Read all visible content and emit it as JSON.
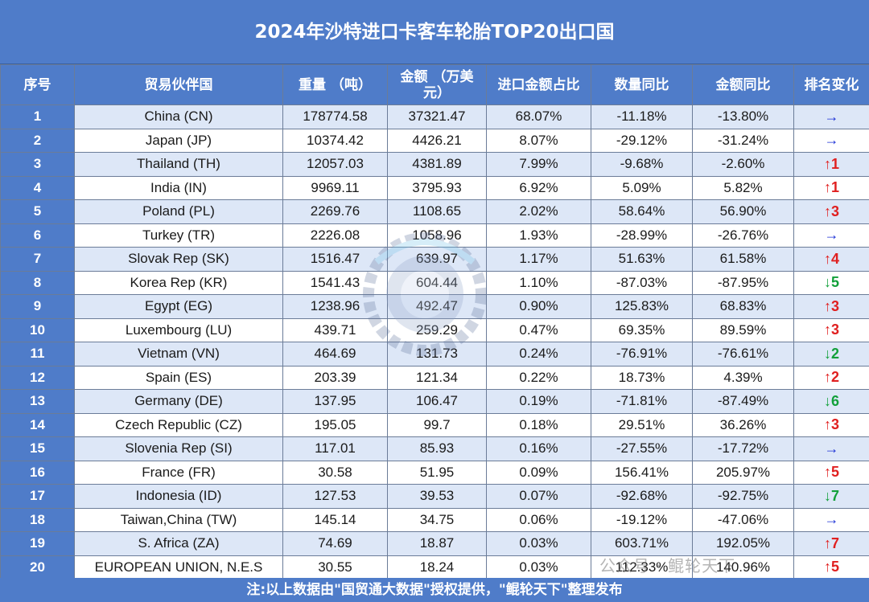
{
  "title": "2024年沙特进口卡客车轮胎TOP20出口国",
  "headers": [
    "序号",
    "贸易伙伴国",
    "重量 （吨）",
    "金额 （万美元）",
    "进口金额占比",
    "数量同比",
    "金额同比",
    "排名变化"
  ],
  "rows": [
    {
      "no": "1",
      "country": "China (CN)",
      "weight": "178774.58",
      "amount": "37321.47",
      "share": "68.07%",
      "qty_yoy": "-11.18%",
      "amt_yoy": "-13.80%",
      "rank": "→",
      "rank_dir": "flat"
    },
    {
      "no": "2",
      "country": "Japan (JP)",
      "weight": "10374.42",
      "amount": "4426.21",
      "share": "8.07%",
      "qty_yoy": "-29.12%",
      "amt_yoy": "-31.24%",
      "rank": "→",
      "rank_dir": "flat"
    },
    {
      "no": "3",
      "country": "Thailand (TH)",
      "weight": "12057.03",
      "amount": "4381.89",
      "share": "7.99%",
      "qty_yoy": "-9.68%",
      "amt_yoy": "-2.60%",
      "rank": "↑1",
      "rank_dir": "up"
    },
    {
      "no": "4",
      "country": "India (IN)",
      "weight": "9969.11",
      "amount": "3795.93",
      "share": "6.92%",
      "qty_yoy": "5.09%",
      "amt_yoy": "5.82%",
      "rank": "↑1",
      "rank_dir": "up"
    },
    {
      "no": "5",
      "country": "Poland (PL)",
      "weight": "2269.76",
      "amount": "1108.65",
      "share": "2.02%",
      "qty_yoy": "58.64%",
      "amt_yoy": "56.90%",
      "rank": "↑3",
      "rank_dir": "up"
    },
    {
      "no": "6",
      "country": "Turkey (TR)",
      "weight": "2226.08",
      "amount": "1058.96",
      "share": "1.93%",
      "qty_yoy": "-28.99%",
      "amt_yoy": "-26.76%",
      "rank": "→",
      "rank_dir": "flat"
    },
    {
      "no": "7",
      "country": "Slovak Rep (SK)",
      "weight": "1516.47",
      "amount": "639.97",
      "share": "1.17%",
      "qty_yoy": "51.63%",
      "amt_yoy": "61.58%",
      "rank": "↑4",
      "rank_dir": "up"
    },
    {
      "no": "8",
      "country": "Korea Rep (KR)",
      "weight": "1541.43",
      "amount": "604.44",
      "share": "1.10%",
      "qty_yoy": "-87.03%",
      "amt_yoy": "-87.95%",
      "rank": "↓5",
      "rank_dir": "down"
    },
    {
      "no": "9",
      "country": "Egypt (EG)",
      "weight": "1238.96",
      "amount": "492.47",
      "share": "0.90%",
      "qty_yoy": "125.83%",
      "amt_yoy": "68.83%",
      "rank": "↑3",
      "rank_dir": "up"
    },
    {
      "no": "10",
      "country": "Luxembourg (LU)",
      "weight": "439.71",
      "amount": "259.29",
      "share": "0.47%",
      "qty_yoy": "69.35%",
      "amt_yoy": "89.59%",
      "rank": "↑3",
      "rank_dir": "up"
    },
    {
      "no": "11",
      "country": "Vietnam (VN)",
      "weight": "464.69",
      "amount": "131.73",
      "share": "0.24%",
      "qty_yoy": "-76.91%",
      "amt_yoy": "-76.61%",
      "rank": "↓2",
      "rank_dir": "down"
    },
    {
      "no": "12",
      "country": "Spain (ES)",
      "weight": "203.39",
      "amount": "121.34",
      "share": "0.22%",
      "qty_yoy": "18.73%",
      "amt_yoy": "4.39%",
      "rank": "↑2",
      "rank_dir": "up"
    },
    {
      "no": "13",
      "country": "Germany (DE)",
      "weight": "137.95",
      "amount": "106.47",
      "share": "0.19%",
      "qty_yoy": "-71.81%",
      "amt_yoy": "-87.49%",
      "rank": "↓6",
      "rank_dir": "down"
    },
    {
      "no": "14",
      "country": "Czech Republic (CZ)",
      "weight": "195.05",
      "amount": "99.7",
      "share": "0.18%",
      "qty_yoy": "29.51%",
      "amt_yoy": "36.26%",
      "rank": "↑3",
      "rank_dir": "up"
    },
    {
      "no": "15",
      "country": "Slovenia Rep (SI)",
      "weight": "117.01",
      "amount": "85.93",
      "share": "0.16%",
      "qty_yoy": "-27.55%",
      "amt_yoy": "-17.72%",
      "rank": "→",
      "rank_dir": "flat"
    },
    {
      "no": "16",
      "country": "France (FR)",
      "weight": "30.58",
      "amount": "51.95",
      "share": "0.09%",
      "qty_yoy": "156.41%",
      "amt_yoy": "205.97%",
      "rank": "↑5",
      "rank_dir": "up"
    },
    {
      "no": "17",
      "country": "Indonesia (ID)",
      "weight": "127.53",
      "amount": "39.53",
      "share": "0.07%",
      "qty_yoy": "-92.68%",
      "amt_yoy": "-92.75%",
      "rank": "↓7",
      "rank_dir": "down"
    },
    {
      "no": "18",
      "country": "Taiwan,China (TW)",
      "weight": "145.14",
      "amount": "34.75",
      "share": "0.06%",
      "qty_yoy": "-19.12%",
      "amt_yoy": "-47.06%",
      "rank": "→",
      "rank_dir": "flat"
    },
    {
      "no": "19",
      "country": "S. Africa (ZA)",
      "weight": "74.69",
      "amount": "18.87",
      "share": "0.03%",
      "qty_yoy": "603.71%",
      "amt_yoy": "192.05%",
      "rank": "↑7",
      "rank_dir": "up"
    },
    {
      "no": "20",
      "country": "EUROPEAN UNION, N.E.S",
      "weight": "30.55",
      "amount": "18.24",
      "share": "0.03%",
      "qty_yoy": "112.33%",
      "amt_yoy": "140.96%",
      "rank": "↑5",
      "rank_dir": "up"
    }
  ],
  "footer": "注:以上数据由\"国贸通大数据\"授权提供，\"鲲轮天下\"整理发布",
  "watermark_text": "公众号 · 鲲轮天下",
  "colors": {
    "header": "#4f7cc9",
    "row_alt": "#dde7f7",
    "flat": "#1a2fd6",
    "up": "#e02020",
    "down": "#12a03a"
  }
}
